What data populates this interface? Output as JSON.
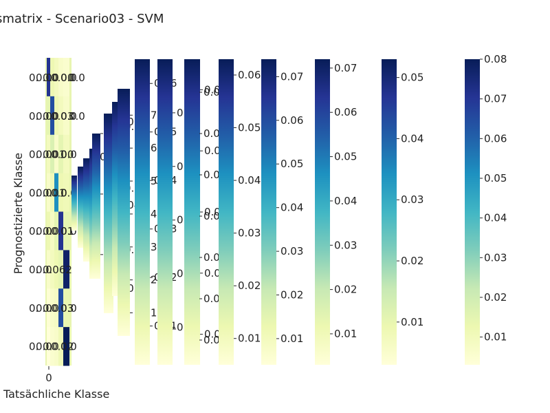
{
  "chart_data": {
    "type": "heatmap",
    "title": "smatrix - Scenario03 - SVM",
    "xlabel": "Tatsächliche Klasse",
    "ylabel": "Prognostizierte Klasse",
    "x_tick_labels": [
      "0"
    ],
    "row_count": 8,
    "colormap": "YlGnBu",
    "colors": [
      "#ffffd9",
      "#edf8b1",
      "#c7e9b4",
      "#7fcdbb",
      "#41b6c4",
      "#1d91c0",
      "#225ea8",
      "#253494",
      "#081d58"
    ],
    "colorbars": [
      {
        "vmin": 0.004,
        "vmax": 0.016,
        "ticks": []
      },
      {
        "vmin": 0.006,
        "vmax": 0.02,
        "ticks": []
      },
      {
        "vmin": 0.008,
        "vmax": 0.022,
        "ticks": []
      },
      {
        "vmin": 0.01,
        "vmax": 0.026,
        "ticks": [
          "0.025"
        ]
      },
      {
        "vmin": 0.012,
        "vmax": 0.06,
        "ticks": [
          "0.02",
          "0.04",
          "0.06"
        ]
      },
      {
        "vmin": 0.014,
        "vmax": 0.062,
        "ticks": [
          "0.02",
          "0.04",
          "0.06"
        ]
      },
      {
        "vmin": 0.005,
        "vmax": 0.068,
        "ticks": [
          "0.02",
          "0.04",
          "0.06"
        ]
      },
      {
        "vmin": 0.003,
        "vmax": 0.078,
        "ticks": [
          "0.01",
          "0.02",
          "0.03",
          "0.04",
          "0.05",
          "0.06",
          "0.07"
        ]
      },
      {
        "vmin": 0.002,
        "vmax": 0.065,
        "ticks": [
          "0.01",
          "0.02",
          "0.03",
          "0.04",
          "0.05",
          "0.06"
        ]
      },
      {
        "vmin": 0.003,
        "vmax": 0.06,
        "ticks": [
          "0.01",
          "0.02",
          "0.03",
          "0.04",
          "0.05"
        ]
      },
      {
        "vmin": 0.005,
        "vmax": 0.055,
        "ticks": [
          "0.01",
          "0.02",
          "0.03",
          "0.04",
          "0.05"
        ]
      },
      {
        "vmin": 0.004,
        "vmax": 0.078,
        "ticks": [
          "0.01",
          "0.02",
          "0.03",
          "0.04",
          "0.05",
          "0.06",
          "0.07"
        ]
      },
      {
        "vmin": 0.005,
        "vmax": 0.063,
        "ticks": [
          "0.01",
          "0.02",
          "0.03",
          "0.04",
          "0.05",
          "0.06"
        ]
      },
      {
        "vmin": 0.004,
        "vmax": 0.074,
        "ticks": [
          "0.01",
          "0.02",
          "0.03",
          "0.04",
          "0.05",
          "0.06",
          "0.07"
        ]
      },
      {
        "vmin": 0.003,
        "vmax": 0.072,
        "ticks": [
          "0.01",
          "0.02",
          "0.03",
          "0.04",
          "0.05",
          "0.06",
          "0.07"
        ]
      },
      {
        "vmin": 0.003,
        "vmax": 0.053,
        "ticks": [
          "0.01",
          "0.02",
          "0.03",
          "0.04",
          "0.05"
        ]
      },
      {
        "vmin": 0.003,
        "vmax": 0.08,
        "ticks": [
          "0.01",
          "0.02",
          "0.03",
          "0.04",
          "0.05",
          "0.06",
          "0.07",
          "0.08"
        ]
      }
    ],
    "heatmap_strips": [
      {
        "values": [
          0.055,
          0.012,
          0.008,
          0.006,
          0.01,
          0.006,
          0.004,
          0.003
        ]
      },
      {
        "values": [
          0.01,
          0.05,
          0.014,
          0.009,
          0.007,
          0.008,
          0.006,
          0.005
        ]
      },
      {
        "values": [
          0.008,
          0.01,
          0.006,
          0.04,
          0.012,
          0.01,
          0.007,
          0.006
        ]
      },
      {
        "values": [
          0.006,
          0.008,
          0.012,
          0.01,
          0.055,
          0.012,
          0.05,
          0.009
        ]
      },
      {
        "values": [
          0.005,
          0.006,
          0.008,
          0.009,
          0.012,
          0.06,
          0.011,
          0.062
        ]
      }
    ],
    "cell_labels": [
      [
        "0.",
        "0.00",
        "0.0",
        "0.00",
        "0.0",
        "0.0"
      ],
      [
        "0.",
        "0.00",
        "0.0",
        "0.03",
        "0.0",
        "0.0"
      ],
      [
        "0.",
        "0.00",
        "0.01",
        "0.00",
        "0.0"
      ],
      [
        "0.",
        "0.0",
        "0.01",
        "0.0",
        "0.0"
      ],
      [
        "0.",
        "0.0",
        "0.0",
        "0.01",
        "0.0"
      ],
      [
        "0.",
        "0.0",
        "0.062"
      ],
      [
        "0.",
        "0.0",
        "0.0",
        "0.03",
        "0.0"
      ],
      [
        "0.",
        "0.0",
        "0.0",
        "0.02",
        "0.0"
      ]
    ]
  }
}
